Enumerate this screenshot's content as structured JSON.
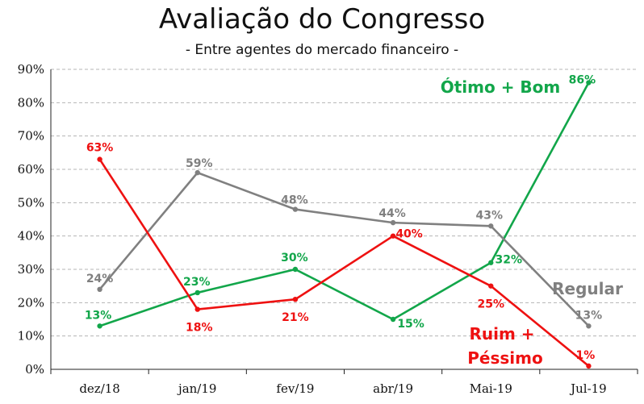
{
  "title": "Avaliação do Congresso",
  "subtitle": "- Entre agentes do mercado financeiro -",
  "colors": {
    "otimo": "#12a64a",
    "regular": "#808080",
    "ruim": "#ee1111",
    "grid": "#b4b4b4"
  },
  "chart_data": {
    "type": "line",
    "title": "Avaliação do Congresso",
    "subtitle": "- Entre agentes do mercado financeiro -",
    "categories": [
      "dez/18",
      "jan/19",
      "fev/19",
      "abr/19",
      "Mai-19",
      "Jul-19"
    ],
    "ylim": [
      0,
      90
    ],
    "yticks": [
      "0%",
      "10%",
      "20%",
      "30%",
      "40%",
      "50%",
      "60%",
      "70%",
      "80%",
      "90%"
    ],
    "grid": true,
    "series": [
      {
        "name": "Ótimo + Bom",
        "values": [
          13,
          23,
          30,
          15,
          32,
          86
        ],
        "labels": [
          "13%",
          "23%",
          "30%",
          "15%",
          "32%",
          "86%"
        ]
      },
      {
        "name": "Regular",
        "values": [
          24,
          59,
          48,
          44,
          43,
          13
        ],
        "labels": [
          "24%",
          "59%",
          "48%",
          "44%",
          "43%",
          "13%"
        ]
      },
      {
        "name": "Ruim + Péssimo",
        "name_lines": [
          "Ruim +",
          "Péssimo"
        ],
        "values": [
          63,
          18,
          21,
          40,
          25,
          1
        ],
        "labels": [
          "63%",
          "18%",
          "21%",
          "40%",
          "25%",
          "1%"
        ]
      }
    ]
  }
}
